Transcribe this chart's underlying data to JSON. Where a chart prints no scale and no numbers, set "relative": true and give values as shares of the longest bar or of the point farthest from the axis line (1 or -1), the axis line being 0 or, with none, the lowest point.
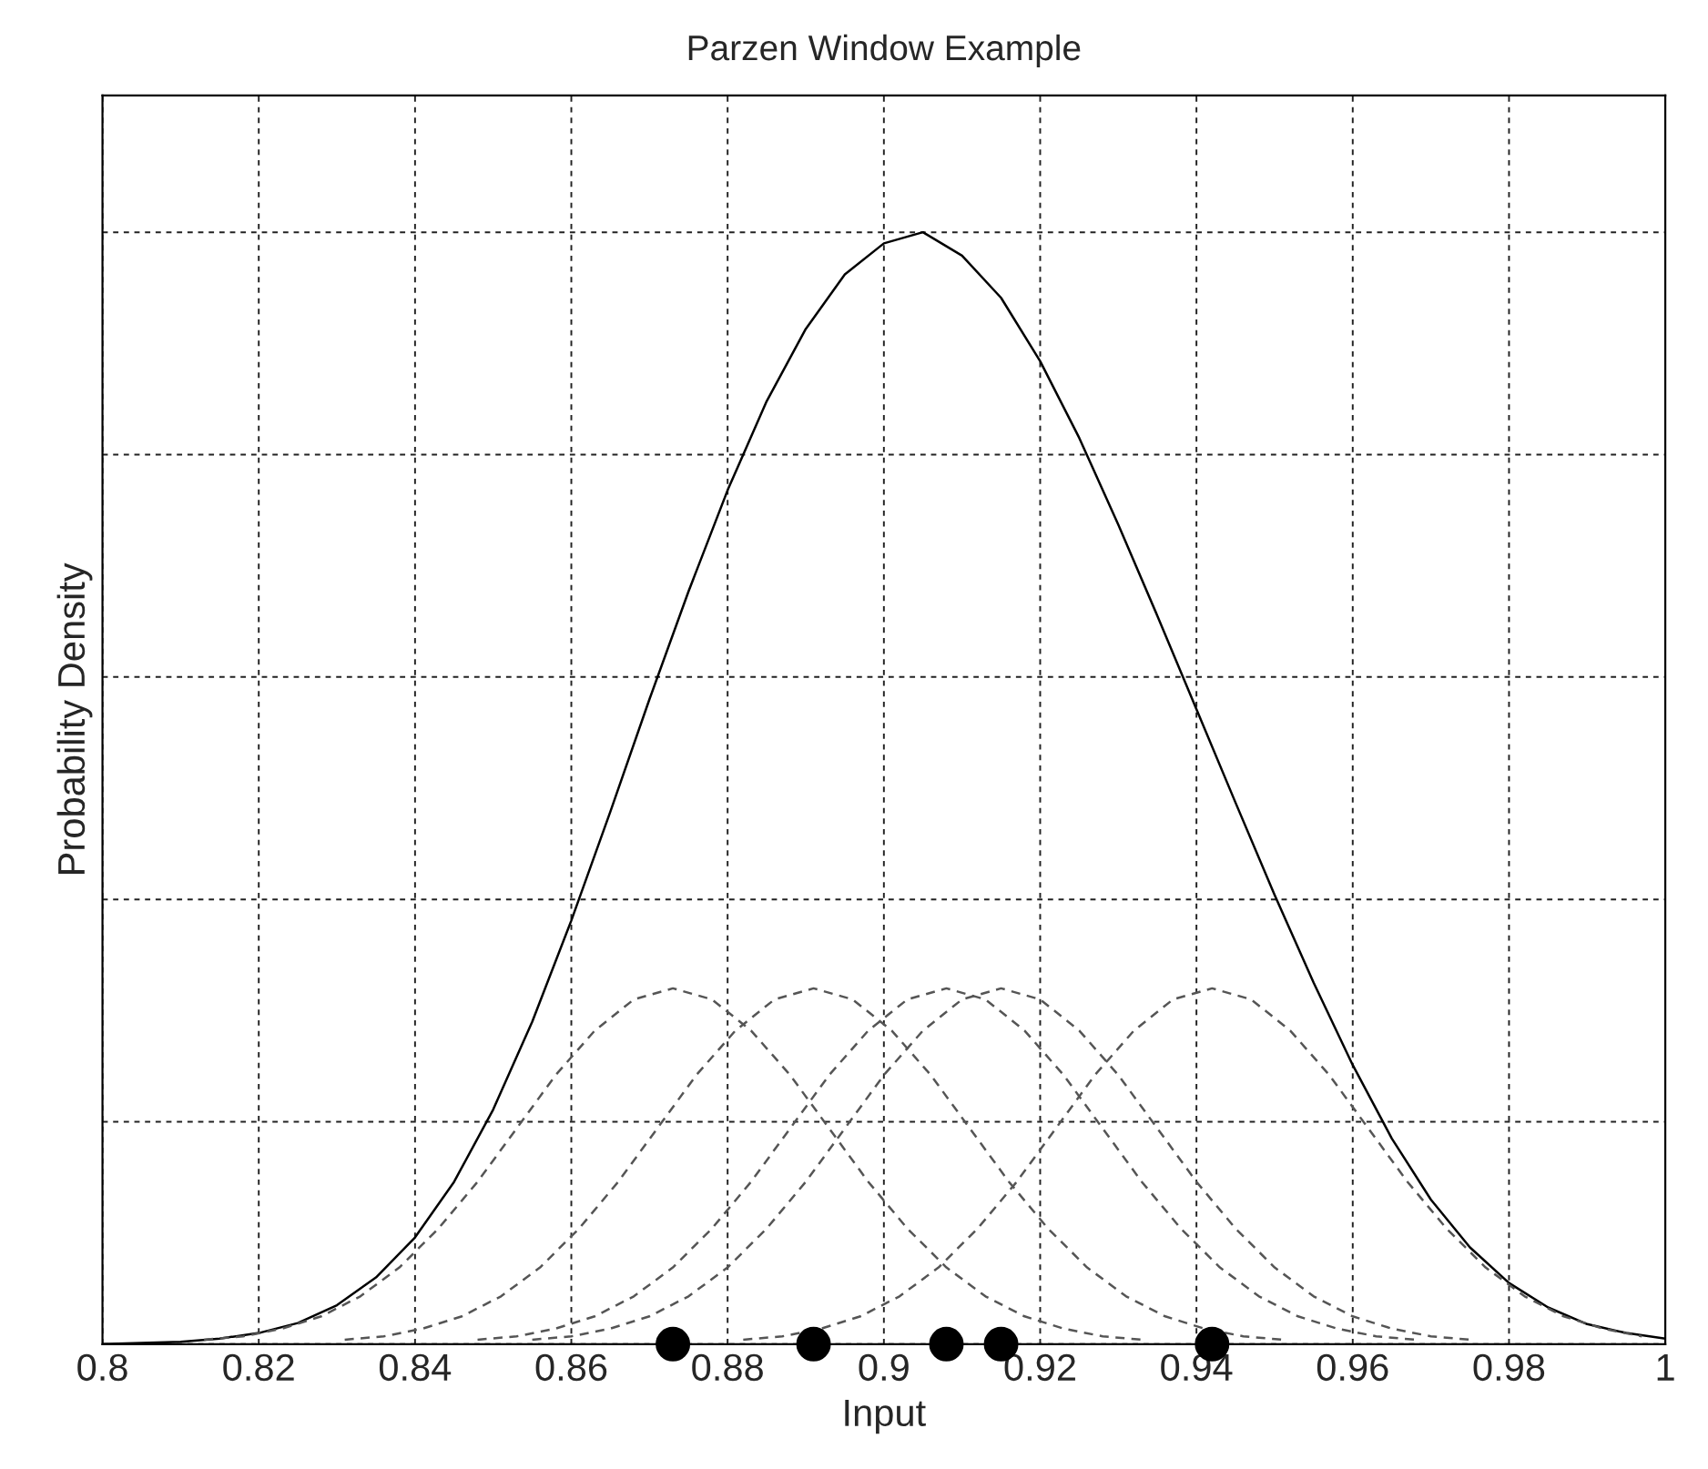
{
  "chart_data": {
    "type": "line",
    "title": "Parzen Window Example",
    "xlabel": "Input",
    "ylabel": "Probability Density",
    "relative": true,
    "xlim": [
      0.8,
      1
    ],
    "xticks": [
      0.8,
      0.82,
      0.84,
      0.86,
      0.88,
      0.9,
      0.92,
      0.94,
      0.96,
      0.98,
      1
    ],
    "tick_labels": "x",
    "grid": true,
    "legend": false,
    "series": [
      {
        "color": "#000000",
        "line_style": "solid",
        "marker": "none",
        "x": [
          0.8,
          0.805,
          0.81,
          0.815,
          0.82,
          0.825,
          0.83,
          0.835,
          0.84,
          0.845,
          0.85,
          0.855,
          0.86,
          0.865,
          0.87,
          0.875,
          0.88,
          0.885,
          0.89,
          0.895,
          0.9,
          0.905,
          0.91,
          0.915,
          0.92,
          0.925,
          0.93,
          0.935,
          0.94,
          0.945,
          0.95,
          0.955,
          0.96,
          0.965,
          0.97,
          0.975,
          0.98,
          0.985,
          0.99,
          0.995,
          1
        ],
        "values": [
          0.0,
          0.001,
          0.002,
          0.005,
          0.01,
          0.019,
          0.035,
          0.06,
          0.096,
          0.146,
          0.211,
          0.29,
          0.381,
          0.479,
          0.58,
          0.677,
          0.768,
          0.848,
          0.913,
          0.962,
          0.99,
          1.0,
          0.979,
          0.941,
          0.884,
          0.815,
          0.737,
          0.655,
          0.571,
          0.487,
          0.404,
          0.325,
          0.251,
          0.185,
          0.13,
          0.087,
          0.055,
          0.033,
          0.018,
          0.01,
          0.005
        ]
      },
      {
        "color": "#555555",
        "line_style": "dashed",
        "marker": "none",
        "x": [
          0.813,
          0.818,
          0.823,
          0.828,
          0.833,
          0.838,
          0.843,
          0.848,
          0.853,
          0.858,
          0.863,
          0.868,
          0.873,
          0.878,
          0.883,
          0.888,
          0.893,
          0.898,
          0.903,
          0.908,
          0.913,
          0.918,
          0.923,
          0.928,
          0.933
        ],
        "values": [
          0.004,
          0.007,
          0.014,
          0.025,
          0.043,
          0.069,
          0.104,
          0.146,
          0.194,
          0.242,
          0.282,
          0.31,
          0.32,
          0.31,
          0.282,
          0.242,
          0.194,
          0.146,
          0.104,
          0.069,
          0.043,
          0.025,
          0.014,
          0.007,
          0.004
        ]
      },
      {
        "color": "#555555",
        "line_style": "dashed",
        "marker": "none",
        "x": [
          0.831,
          0.836,
          0.841,
          0.846,
          0.851,
          0.856,
          0.861,
          0.866,
          0.871,
          0.876,
          0.881,
          0.886,
          0.891,
          0.896,
          0.901,
          0.906,
          0.911,
          0.916,
          0.921,
          0.926,
          0.931,
          0.936,
          0.941,
          0.946,
          0.951
        ],
        "values": [
          0.004,
          0.007,
          0.014,
          0.025,
          0.043,
          0.069,
          0.104,
          0.146,
          0.194,
          0.242,
          0.282,
          0.31,
          0.32,
          0.31,
          0.282,
          0.242,
          0.194,
          0.146,
          0.104,
          0.069,
          0.043,
          0.025,
          0.014,
          0.007,
          0.004
        ]
      },
      {
        "color": "#555555",
        "line_style": "dashed",
        "marker": "none",
        "x": [
          0.848,
          0.853,
          0.858,
          0.863,
          0.868,
          0.873,
          0.878,
          0.883,
          0.888,
          0.893,
          0.898,
          0.903,
          0.908,
          0.913,
          0.918,
          0.923,
          0.928,
          0.933,
          0.938,
          0.943,
          0.948,
          0.953,
          0.958,
          0.963,
          0.968
        ],
        "values": [
          0.004,
          0.007,
          0.014,
          0.025,
          0.043,
          0.069,
          0.104,
          0.146,
          0.194,
          0.242,
          0.282,
          0.31,
          0.32,
          0.31,
          0.282,
          0.242,
          0.194,
          0.146,
          0.104,
          0.069,
          0.043,
          0.025,
          0.014,
          0.007,
          0.004
        ]
      },
      {
        "color": "#555555",
        "line_style": "dashed",
        "marker": "none",
        "x": [
          0.855,
          0.86,
          0.865,
          0.87,
          0.875,
          0.88,
          0.885,
          0.89,
          0.895,
          0.9,
          0.905,
          0.91,
          0.915,
          0.92,
          0.925,
          0.93,
          0.935,
          0.94,
          0.945,
          0.95,
          0.955,
          0.96,
          0.965,
          0.97,
          0.975
        ],
        "values": [
          0.004,
          0.007,
          0.014,
          0.025,
          0.043,
          0.069,
          0.104,
          0.146,
          0.194,
          0.242,
          0.282,
          0.31,
          0.32,
          0.31,
          0.282,
          0.242,
          0.194,
          0.146,
          0.104,
          0.069,
          0.043,
          0.025,
          0.014,
          0.007,
          0.004
        ]
      },
      {
        "color": "#555555",
        "line_style": "dashed",
        "marker": "none",
        "x": [
          0.882,
          0.887,
          0.892,
          0.897,
          0.902,
          0.907,
          0.912,
          0.917,
          0.922,
          0.927,
          0.932,
          0.937,
          0.942,
          0.947,
          0.952,
          0.957,
          0.962,
          0.967,
          0.972,
          0.977,
          0.982,
          0.987,
          0.992,
          0.997
        ],
        "values": [
          0.004,
          0.007,
          0.014,
          0.025,
          0.043,
          0.069,
          0.104,
          0.146,
          0.194,
          0.242,
          0.282,
          0.31,
          0.32,
          0.31,
          0.282,
          0.242,
          0.194,
          0.146,
          0.104,
          0.069,
          0.043,
          0.025,
          0.014,
          0.007
        ]
      },
      {
        "type": "scatter",
        "color": "#000000",
        "marker": "circle",
        "x": [
          0.873,
          0.891,
          0.908,
          0.915,
          0.942
        ],
        "values": [
          0,
          0,
          0,
          0,
          0
        ]
      }
    ]
  }
}
